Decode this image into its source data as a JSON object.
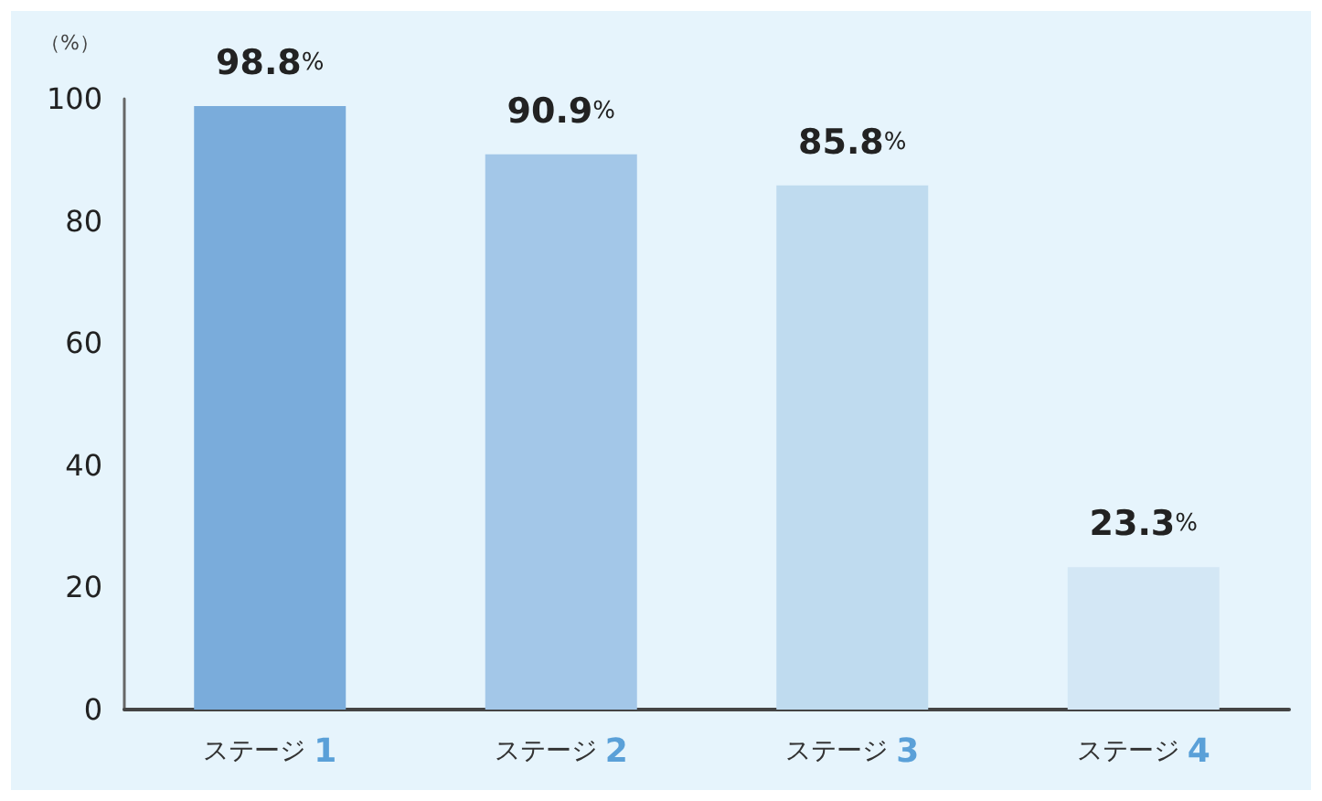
{
  "chart_data": {
    "type": "bar",
    "ylabel": "（%）",
    "categories": [
      "ステージ 1",
      "ステージ 2",
      "ステージ 3",
      "ステージ 4"
    ],
    "values": [
      98.8,
      90.9,
      85.8,
      23.3
    ],
    "colors": [
      "#7aacdb",
      "#a3c7e8",
      "#bfdbef",
      "#d3e7f5"
    ],
    "value_labels": [
      "98.8%",
      "90.9%",
      "85.8%",
      "23.3%"
    ],
    "ylim": [
      0,
      100
    ],
    "yticks": [
      0,
      20,
      40,
      60,
      80,
      100
    ],
    "grid": false
  }
}
